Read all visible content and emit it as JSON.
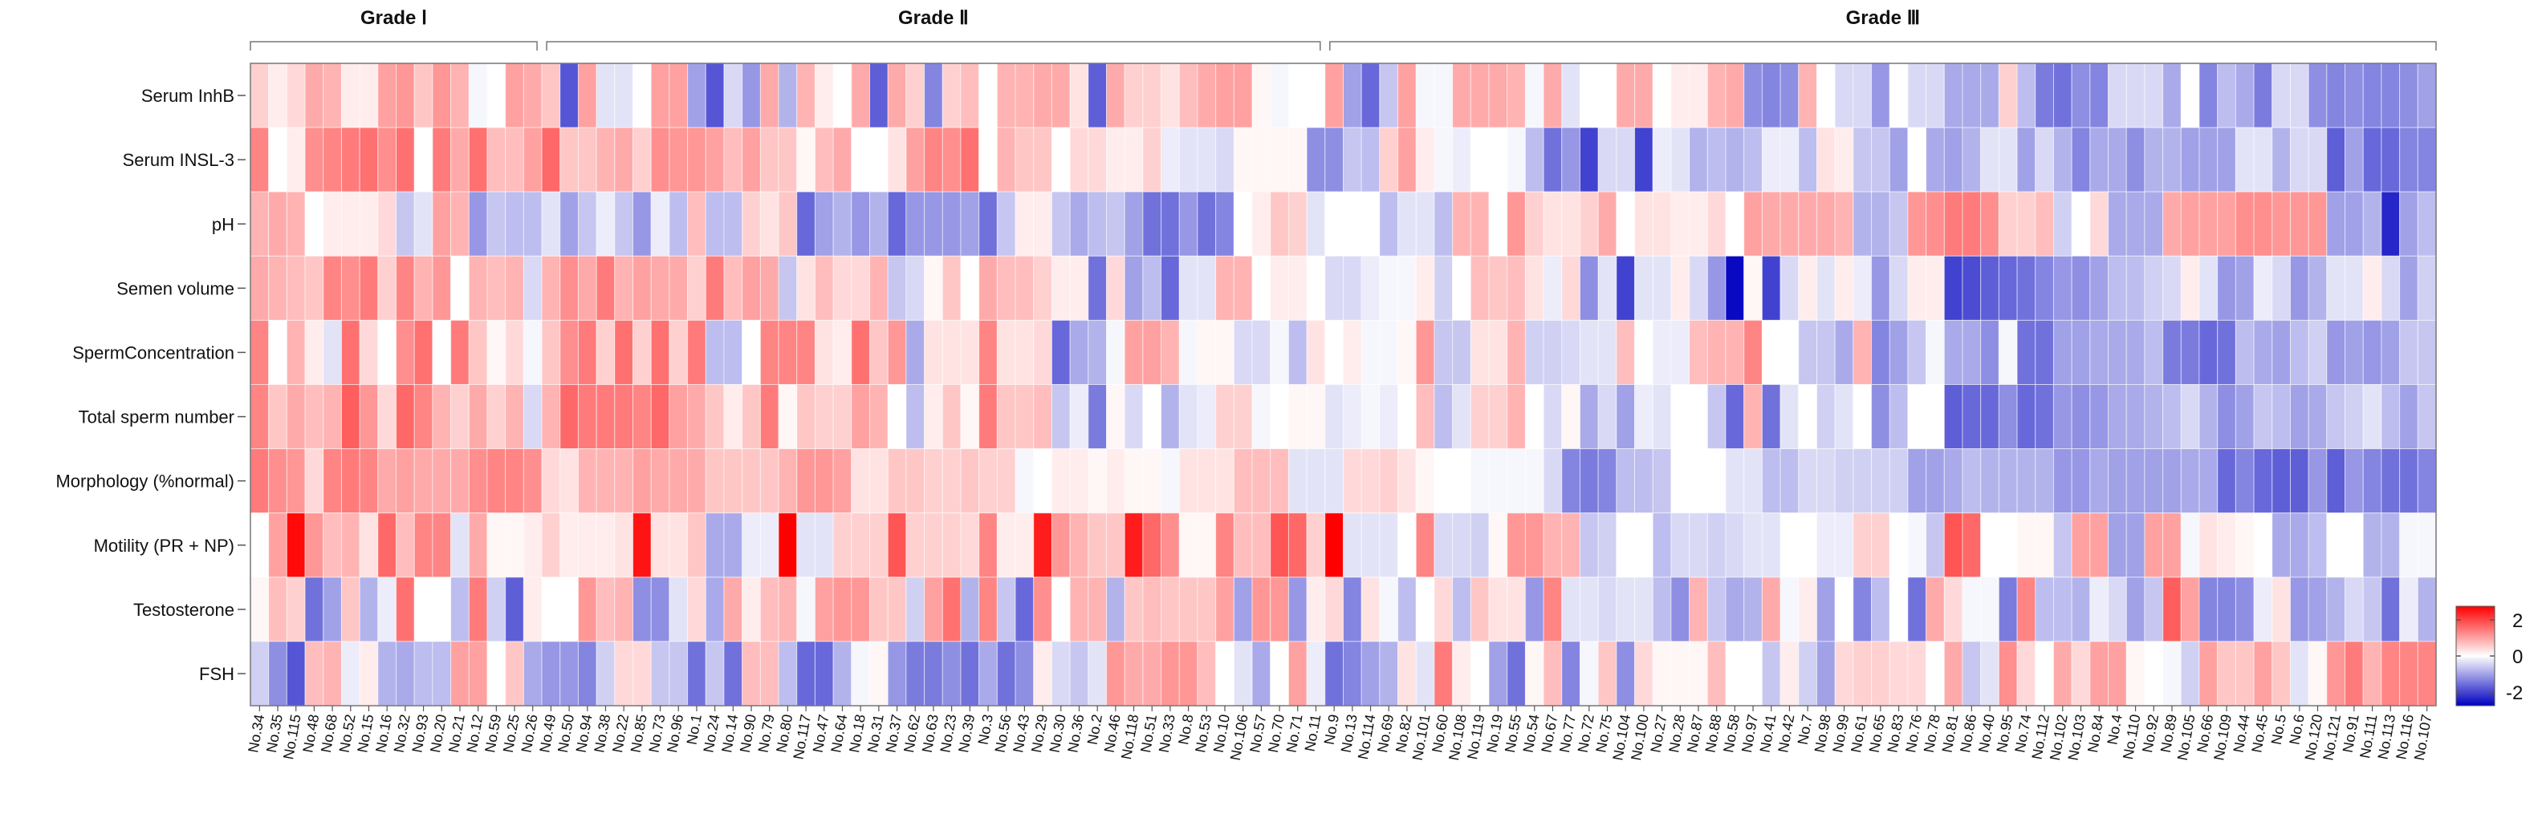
{
  "chart_data": {
    "type": "heatmap",
    "title": "",
    "xlabel": "",
    "ylabel": "",
    "color_scale": {
      "low": "#0000c0",
      "mid": "#ffffff",
      "high": "#ff0000",
      "range": [
        -2.7,
        2.7
      ]
    },
    "legend": {
      "position": "right",
      "ticks": [
        "2",
        "0",
        "-2"
      ],
      "tick_values": [
        2,
        0,
        -2
      ]
    },
    "groups": [
      {
        "label": "Grade Ⅰ",
        "count": 16
      },
      {
        "label": "Grade Ⅱ",
        "count": 43
      },
      {
        "label": "Grade Ⅲ",
        "count": 61
      }
    ],
    "rows": [
      "Serum InhB",
      "Serum INSL-3",
      "pH",
      "Semen volume",
      "SpermConcentration",
      "Total sperm number",
      "Morphology (%normal)",
      "Motility (PR + NP)",
      "Testosterone",
      "FSH"
    ],
    "columns": [
      "No.34",
      "No.35",
      "No.115",
      "No.48",
      "No.68",
      "No.52",
      "No.15",
      "No.16",
      "No.32",
      "No.93",
      "No.20",
      "No.21",
      "No.12",
      "No.59",
      "No.25",
      "No.26",
      "No.49",
      "No.50",
      "No.94",
      "No.38",
      "No.22",
      "No.85",
      "No.73",
      "No.96",
      "No.1",
      "No.24",
      "No.14",
      "No.90",
      "No.79",
      "No.80",
      "No.117",
      "No.47",
      "No.64",
      "No.18",
      "No.31",
      "No.37",
      "No.62",
      "No.63",
      "No.23",
      "No.39",
      "No.3",
      "No.56",
      "No.43",
      "No.29",
      "No.30",
      "No.36",
      "No.2",
      "No.46",
      "No.118",
      "No.51",
      "No.33",
      "No.8",
      "No.53",
      "No.10",
      "No.106",
      "No.57",
      "No.70",
      "No.71",
      "No.11",
      "No.9",
      "No.13",
      "No.114",
      "No.69",
      "No.82",
      "No.101",
      "No.60",
      "No.108",
      "No.119",
      "No.19",
      "No.55",
      "No.54",
      "No.67",
      "No.77",
      "No.72",
      "No.75",
      "No.104",
      "No.100",
      "No.27",
      "No.28",
      "No.87",
      "No.88",
      "No.58",
      "No.97",
      "No.41",
      "No.42",
      "No.7",
      "No.98",
      "No.99",
      "No.61",
      "No.65",
      "No.83",
      "No.76",
      "No.78",
      "No.81",
      "No.86",
      "No.40",
      "No.95",
      "No.74",
      "No.112",
      "No.102",
      "No.103",
      "No.84",
      "No.4",
      "No.110",
      "No.92",
      "No.89",
      "No.105",
      "No.66",
      "No.109",
      "No.44",
      "No.45",
      "No.5",
      "No.6",
      "No.120",
      "No.121",
      "No.91",
      "No.111",
      "No.113",
      "No.116",
      "No.107"
    ],
    "values": [
      [
        0.5,
        0.2,
        0.4,
        0.9,
        0.8,
        0.2,
        0.2,
        1.0,
        1.1,
        0.6,
        1.1,
        0.8,
        -0.1,
        0,
        1.0,
        0.9,
        0.6,
        -1.8,
        1.0,
        -0.3,
        -0.3,
        0,
        1.0,
        1.0,
        -1.0,
        -1.8,
        -0.4,
        -1.1,
        0.9,
        -0.8,
        0.8,
        0.2,
        0,
        0.9,
        -1.7,
        0.9,
        0.5,
        -1.3,
        0.5,
        0.7,
        0,
        0.8,
        0.8,
        0.9,
        0.9,
        0.3,
        -1.7,
        0.9,
        0.5,
        0.5,
        0.3,
        0.7,
        0.9,
        1.0,
        1.0,
        0.1,
        -0.1,
        0,
        0,
        1.0,
        -1.0,
        -1.6,
        -0.6,
        1.0,
        -0.1,
        -0.1,
        0.9,
        0.9,
        0.9,
        0.8,
        -0.1,
        0.9,
        -0.3,
        0,
        0,
        0.9,
        0.9,
        0,
        0.2,
        0.2,
        0.8,
        0.9,
        -1.2,
        -1.3,
        -1.2,
        0.8,
        0,
        -0.4,
        -0.4,
        -1.1,
        0,
        -0.4,
        -0.4,
        -0.9,
        -0.9,
        -0.9,
        0.5,
        -0.7,
        -1.4,
        -1.5,
        -1.2,
        -1.3,
        -0.4,
        -0.4,
        -0.4,
        -0.9,
        0,
        -1.3,
        -0.7,
        -0.9,
        -1.4,
        -0.4,
        -0.4,
        -1.2,
        -1.3,
        -1.2,
        -1.3,
        -1.3,
        -1.2,
        -1.0
      ],
      [
        1.3,
        0,
        0.2,
        1.2,
        1.3,
        1.4,
        1.5,
        1.2,
        1.5,
        0,
        1.4,
        0.9,
        1.5,
        0.7,
        0.7,
        1.0,
        1.6,
        0.6,
        0.6,
        0.8,
        0.9,
        0.5,
        1.2,
        1.1,
        1.1,
        1.0,
        0.7,
        1.0,
        0.6,
        0.6,
        0.1,
        0.7,
        0.9,
        0,
        0,
        0.3,
        1.0,
        1.3,
        1.2,
        1.5,
        0,
        0.8,
        0.6,
        0.6,
        0,
        0.4,
        0.4,
        0.2,
        0.2,
        0.5,
        -0.2,
        -0.3,
        -0.3,
        -0.4,
        0.1,
        0.1,
        0.1,
        0.1,
        -1.2,
        -1.2,
        -0.6,
        -0.7,
        0.5,
        1.0,
        0.2,
        -0.1,
        -0.2,
        0,
        0,
        -0.1,
        -0.7,
        -1.5,
        -1.1,
        -2.0,
        -0.4,
        -0.4,
        -2.0,
        -0.2,
        -0.3,
        -0.8,
        -0.7,
        -0.8,
        -0.7,
        -0.2,
        -0.2,
        -0.7,
        0.3,
        0.2,
        -0.6,
        -0.6,
        -1.0,
        0,
        -0.9,
        -1.0,
        -0.8,
        -0.3,
        -0.3,
        -1.0,
        -0.4,
        -0.8,
        -1.3,
        -0.9,
        -0.9,
        -1.2,
        -0.8,
        -0.8,
        -1.0,
        -1.0,
        -1.0,
        -0.3,
        -0.3,
        -0.8,
        -0.4,
        -0.4,
        -1.7,
        -1.0,
        -1.6,
        -1.6,
        -1.3,
        -1.3
      ],
      [
        0.8,
        0.9,
        0.8,
        0,
        0.2,
        0.2,
        0.2,
        0.4,
        -0.6,
        -0.3,
        1.0,
        0.8,
        -1.1,
        -0.6,
        -0.7,
        -0.7,
        -0.3,
        -1.0,
        -0.6,
        -0.2,
        -0.6,
        -1.1,
        -0.2,
        -0.7,
        0.7,
        -0.7,
        -0.7,
        0.5,
        0.3,
        0.6,
        -1.6,
        -1.0,
        -0.8,
        -1.1,
        -0.8,
        -1.6,
        -1.1,
        -1.1,
        -1.1,
        -1.0,
        -1.5,
        -0.6,
        0.2,
        0.2,
        -0.6,
        -0.9,
        -0.7,
        -0.6,
        -1.0,
        -1.5,
        -1.5,
        -1.1,
        -1.5,
        -1.3,
        0,
        0.2,
        0.6,
        0.5,
        -0.3,
        0,
        0,
        0,
        -0.7,
        -0.3,
        -0.3,
        -0.7,
        0.8,
        0.8,
        0,
        1.1,
        0.5,
        0.3,
        0.3,
        0.5,
        0.9,
        0,
        0.3,
        0.3,
        0.2,
        0.2,
        0.4,
        0,
        1.0,
        0.9,
        0.9,
        0.9,
        0.9,
        0.8,
        -0.8,
        -0.8,
        -0.6,
        1.1,
        1.2,
        1.4,
        1.4,
        1.2,
        0.5,
        0.5,
        0.7,
        -0.5,
        0,
        0.4,
        -0.9,
        -0.9,
        -0.9,
        0.9,
        1.0,
        1.0,
        1.0,
        1.2,
        1.2,
        1.1,
        1.1,
        1.1,
        -1.0,
        -1.0,
        -0.8,
        -2.3,
        -1.0,
        -0.7
      ],
      [
        0.9,
        0.8,
        0.7,
        0.6,
        1.3,
        1.2,
        1.4,
        0.5,
        1.3,
        0.8,
        1.1,
        0,
        0.8,
        0.7,
        0.8,
        -0.4,
        0.8,
        1.2,
        0.9,
        1.4,
        0.8,
        1.0,
        0.9,
        0.9,
        0.5,
        1.4,
        0.7,
        1.0,
        0.9,
        -0.6,
        0.3,
        0.7,
        0.4,
        0.4,
        0.8,
        -0.6,
        -0.4,
        0.1,
        0.6,
        0,
        0.9,
        0.7,
        0.7,
        0.5,
        0.2,
        0.2,
        -1.5,
        0.4,
        -1.0,
        -0.7,
        -1.6,
        -0.3,
        -0.3,
        0.8,
        0.8,
        0,
        0.2,
        0.2,
        0,
        -0.4,
        -0.4,
        -0.2,
        -0.1,
        -0.1,
        0.2,
        -0.5,
        0,
        0.7,
        0.6,
        0.7,
        0.3,
        -0.2,
        0.4,
        -1.2,
        -0.3,
        -2.0,
        -0.3,
        -0.3,
        0.2,
        -0.4,
        -1.1,
        -2.6,
        0.1,
        -2.0,
        -0.4,
        0.2,
        -0.3,
        0.2,
        -0.2,
        -1.1,
        -0.4,
        0.2,
        0.2,
        -2.0,
        -1.9,
        -1.7,
        -1.6,
        -1.5,
        -1.3,
        -1.1,
        -1.2,
        -1.0,
        -0.7,
        -0.7,
        -0.5,
        -0.4,
        0.2,
        -0.3,
        -1.1,
        -1.0,
        -0.2,
        -0.4,
        -1.1,
        -0.8,
        -0.3,
        -0.3,
        0.2,
        -0.4,
        -1.0,
        -0.5
      ],
      [
        1.3,
        0,
        0.8,
        0.2,
        -0.3,
        1.5,
        0.4,
        0,
        1.2,
        1.5,
        0,
        1.4,
        0.6,
        0.1,
        0.4,
        -0.1,
        0.6,
        1.2,
        1.4,
        0.5,
        1.5,
        0.5,
        1.5,
        0.5,
        1.4,
        -0.7,
        -0.7,
        0,
        1.3,
        1.3,
        1.3,
        0.3,
        0.2,
        1.5,
        0.6,
        1.1,
        -0.9,
        0.3,
        0.3,
        0.3,
        1.3,
        0.3,
        0.3,
        0.4,
        -1.6,
        -0.9,
        -0.8,
        -0.1,
        1.0,
        1.0,
        0.8,
        -0.1,
        0.1,
        0.1,
        -0.4,
        -0.4,
        -0.1,
        -0.7,
        0.3,
        0,
        0.2,
        -0.1,
        -0.1,
        0.1,
        1.1,
        -0.6,
        -0.6,
        0.3,
        0.3,
        0.8,
        -0.5,
        -0.5,
        -0.4,
        -0.3,
        -0.3,
        0.7,
        0,
        -0.2,
        -0.2,
        0.7,
        0.8,
        0.8,
        1.3,
        0,
        0,
        -0.6,
        -0.6,
        -0.9,
        0.8,
        -1.3,
        -1.0,
        -0.6,
        -0.1,
        -0.9,
        -0.9,
        -1.2,
        -0.1,
        -1.5,
        -1.5,
        -1.0,
        -1.0,
        -0.9,
        -0.9,
        -0.9,
        -0.7,
        -1.4,
        -1.4,
        -1.6,
        -1.5,
        -0.7,
        -0.9,
        -1.0,
        -0.7,
        -0.5,
        -1.1,
        -1.0,
        -1.1,
        -1.0,
        -0.6,
        -0.6
      ],
      [
        1.3,
        0.6,
        0.9,
        0.7,
        0.8,
        1.7,
        1.1,
        0.4,
        1.6,
        1.3,
        0.8,
        0.5,
        0.9,
        0.5,
        0.8,
        -0.4,
        0.8,
        1.6,
        1.4,
        1.4,
        1.4,
        1.3,
        1.6,
        1.0,
        0.9,
        0.6,
        0.2,
        0.6,
        1.4,
        0.1,
        0.6,
        0.5,
        0.5,
        1.0,
        0.8,
        0,
        -0.7,
        0.2,
        0.6,
        0.1,
        1.4,
        0.6,
        0.6,
        0.7,
        -0.6,
        -0.2,
        -1.4,
        0.1,
        -0.4,
        0,
        -0.8,
        -0.3,
        -0.2,
        0.5,
        0.5,
        -0.1,
        0,
        0.1,
        0.1,
        -0.3,
        -0.2,
        -0.1,
        -0.2,
        0,
        0.7,
        -0.7,
        -0.3,
        0.5,
        0.5,
        0.8,
        0,
        -0.4,
        0.1,
        -0.9,
        -0.4,
        -1.0,
        -0.2,
        -0.3,
        0,
        0,
        -0.6,
        -1.6,
        0.8,
        -1.5,
        -0.3,
        0,
        -0.5,
        -0.3,
        0,
        -1.2,
        -0.7,
        0,
        0,
        -1.7,
        -1.6,
        -1.6,
        -1.2,
        -1.6,
        -1.5,
        -1.1,
        -1.2,
        -1.1,
        -0.9,
        -0.9,
        -0.8,
        -0.7,
        -0.4,
        -0.8,
        -1.2,
        -1.0,
        -0.6,
        -0.7,
        -1.0,
        -0.9,
        -0.6,
        -0.5,
        -0.3,
        -0.7,
        -1.0,
        -0.6
      ],
      [
        1.4,
        1.2,
        1.1,
        0.4,
        1.3,
        1.4,
        1.3,
        0.9,
        1.0,
        0.9,
        0.9,
        0.9,
        1.2,
        1.3,
        1.3,
        1.2,
        0.4,
        0.3,
        0.8,
        0.8,
        0.8,
        1.0,
        0.9,
        0.9,
        0.9,
        0.6,
        0.6,
        0.6,
        0.6,
        0.8,
        1.1,
        1.1,
        1.0,
        0.3,
        0.3,
        0.6,
        0.6,
        0.5,
        0.5,
        0.6,
        0.5,
        0.5,
        -0.1,
        0,
        0.2,
        0.2,
        0.1,
        0.2,
        0.1,
        0.1,
        -0.1,
        0.3,
        0.3,
        0.3,
        0.7,
        0.7,
        0.7,
        -0.3,
        -0.3,
        -0.3,
        0.4,
        0.4,
        0.5,
        0.3,
        0.1,
        0,
        0,
        -0.1,
        -0.1,
        -0.1,
        -0.1,
        -0.4,
        -1.3,
        -1.4,
        -1.3,
        -0.7,
        -0.7,
        -0.6,
        0,
        0,
        0,
        -0.3,
        -0.3,
        -0.7,
        -0.7,
        -0.4,
        -0.4,
        -0.5,
        -0.5,
        -0.5,
        -0.5,
        -1.0,
        -1.0,
        -0.9,
        -0.7,
        -0.8,
        -0.8,
        -0.8,
        -0.8,
        -1.1,
        -1.1,
        -0.9,
        -1.0,
        -1.0,
        -1.0,
        -1.0,
        -0.9,
        -0.9,
        -1.6,
        -1.3,
        -1.6,
        -1.7,
        -1.7,
        -1.1,
        -1.7,
        -1.1,
        -1.3,
        -1.5,
        -1.5,
        -1.3
      ],
      [
        0,
        1.0,
        2.6,
        1.1,
        0.7,
        0.8,
        0.3,
        1.6,
        0.7,
        1.3,
        1.3,
        -0.3,
        0.9,
        0.1,
        0.1,
        0.2,
        0.5,
        0.2,
        0.2,
        0.2,
        0.3,
        2.5,
        0.3,
        0.3,
        0.6,
        -0.9,
        -0.9,
        -0.2,
        -0.2,
        2.7,
        -0.3,
        -0.3,
        0.5,
        0.5,
        0.5,
        1.8,
        0.5,
        0.5,
        0.5,
        0.4,
        1.3,
        0.2,
        0.2,
        2.4,
        1.1,
        0.8,
        0.6,
        0.6,
        2.4,
        1.6,
        1.2,
        0.1,
        0.1,
        1.3,
        0.7,
        0.7,
        1.8,
        1.6,
        0.5,
        2.8,
        -0.3,
        -0.3,
        -0.3,
        0,
        1.3,
        -0.4,
        -0.4,
        -0.5,
        0.1,
        1.1,
        1.1,
        0.8,
        0.8,
        -0.6,
        -0.5,
        0,
        0,
        -0.7,
        -0.4,
        -0.4,
        -0.5,
        -0.4,
        -0.3,
        -0.3,
        0,
        0,
        -0.2,
        -0.2,
        0.5,
        0.5,
        0,
        -0.1,
        -0.6,
        1.8,
        1.6,
        0,
        0,
        0.1,
        0.1,
        -0.6,
        1.0,
        1.0,
        -1.0,
        -1.0,
        1.0,
        1.0,
        -0.1,
        0.3,
        0.2,
        0.1,
        0,
        -0.9,
        -0.9,
        -0.7,
        0,
        0,
        -0.8,
        -0.8,
        -0.1,
        -0.1
      ],
      [
        0.1,
        0.7,
        0.5,
        -1.5,
        -1.0,
        0.6,
        -0.8,
        -0.2,
        1.5,
        0,
        0,
        -0.7,
        1.4,
        -0.5,
        -1.7,
        0.2,
        0,
        0,
        1.1,
        0.7,
        0.8,
        -1.2,
        -1.2,
        -0.3,
        0.4,
        -0.9,
        0.9,
        0.2,
        0.7,
        0.8,
        -0.1,
        1.0,
        1.1,
        1.1,
        0.6,
        0.6,
        -0.5,
        1.0,
        1.5,
        -0.8,
        1.3,
        -0.6,
        -1.6,
        1.2,
        0,
        0.8,
        0.8,
        -0.8,
        0.6,
        0.7,
        0.6,
        0.6,
        0.6,
        1.0,
        -1.0,
        1.1,
        1.1,
        -1.1,
        0.2,
        0.4,
        -1.3,
        0.3,
        -0.1,
        -0.7,
        0,
        0.4,
        -0.7,
        0.6,
        0.3,
        0.3,
        -1.1,
        1.3,
        -0.3,
        -0.3,
        -0.4,
        -0.3,
        -0.3,
        -0.7,
        -1.2,
        0.8,
        -0.6,
        -0.9,
        -0.8,
        0.9,
        -0.1,
        0.2,
        -1.0,
        0,
        -1.3,
        -0.7,
        0,
        -1.5,
        0.9,
        0.4,
        -0.1,
        -0.1,
        -1.4,
        1.3,
        -0.7,
        -0.7,
        -0.8,
        -0.2,
        -0.4,
        -1.0,
        -0.6,
        1.7,
        1.0,
        -1.3,
        -1.3,
        -1.2,
        -0.2,
        0.3,
        -1.1,
        -1.0,
        -0.8,
        -0.4,
        -0.6,
        -1.5,
        -0.2,
        -0.8
      ],
      [
        -0.5,
        -1.2,
        -1.8,
        0.7,
        0.8,
        -0.2,
        0.2,
        -0.8,
        -0.9,
        -0.7,
        -0.7,
        1.0,
        1.0,
        0,
        0.6,
        -0.9,
        -1.1,
        -1.1,
        -1.3,
        -0.5,
        0.4,
        0.4,
        -0.6,
        -0.6,
        -1.5,
        -0.6,
        -1.5,
        0.7,
        0.7,
        -0.7,
        -1.6,
        -1.6,
        -0.8,
        -0.1,
        0.1,
        -1.1,
        -1.4,
        -1.4,
        -1.2,
        -1.5,
        -0.9,
        -1.5,
        -1.2,
        0.2,
        -0.4,
        -0.6,
        -0.3,
        1.1,
        0.9,
        0.9,
        1.1,
        1.1,
        0.7,
        0,
        -0.3,
        -0.9,
        0,
        1.0,
        -0.2,
        -1.5,
        -1.3,
        -1.0,
        -0.8,
        0.3,
        -0.3,
        1.4,
        0.2,
        0,
        -1.0,
        -1.5,
        0.1,
        0.7,
        -1.3,
        -0.1,
        0.6,
        -1.2,
        0.4,
        0.1,
        0.1,
        0.1,
        0.7,
        0,
        0,
        -0.6,
        0.2,
        -0.5,
        -1.0,
        0.4,
        0.5,
        0.5,
        0.4,
        0.4,
        0,
        0.9,
        -0.6,
        -0.3,
        1.2,
        0.4,
        0,
        0.9,
        0.4,
        1.0,
        1.0,
        0.1,
        0,
        -0.1,
        -0.5,
        1.0,
        0.6,
        0.6,
        1.0,
        0.6,
        -0.3,
        0.1,
        1.1,
        1.4,
        0.8,
        1.3,
        1.3,
        1.3
      ]
    ]
  }
}
